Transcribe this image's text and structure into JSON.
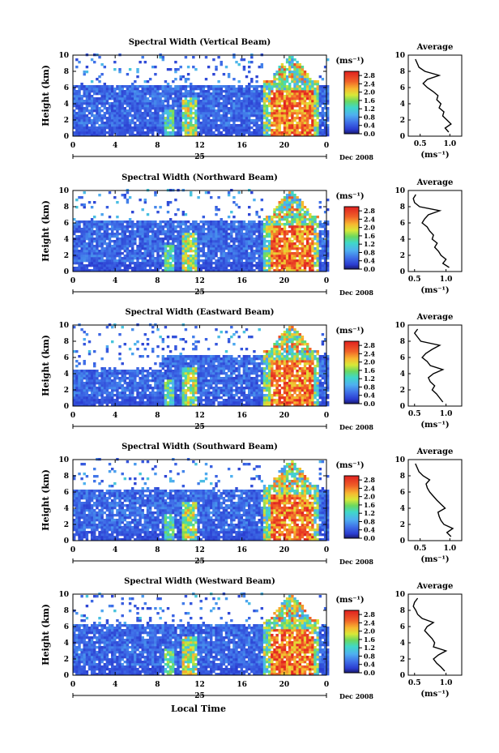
{
  "figure": {
    "xlabel_bottom": "Local Time",
    "colorbar_unit": "(ms⁻¹)",
    "average_title": "Average",
    "average_xlabel": "(ms⁻¹)",
    "day_label": "25",
    "month_label": "Dec 2008"
  },
  "chart_data": [
    {
      "type": "heatmap",
      "title": "Spectral Width (Vertical Beam)",
      "ylabel": "Height (km)",
      "xticks": [
        "0",
        "4",
        "8",
        "12",
        "16",
        "20",
        "0"
      ],
      "yticks": [
        "0",
        "2",
        "4",
        "6",
        "8",
        "10"
      ],
      "xlim": [
        0,
        24
      ],
      "ylim": [
        0,
        10
      ],
      "colorbar": {
        "ticks": [
          "0.0",
          "0.4",
          "0.8",
          "1.2",
          "1.6",
          "2.0",
          "2.4",
          "2.8"
        ],
        "range": [
          0.0,
          3.0
        ]
      },
      "average_profile": {
        "xticks": [
          "0.5",
          "1.0"
        ],
        "xlim": [
          0.3,
          1.2
        ],
        "heights": [
          0.5,
          1,
          1.5,
          2,
          2.5,
          3,
          3.5,
          4,
          4.5,
          5,
          5.5,
          6,
          6.5,
          7,
          7.5,
          8,
          8.5,
          9,
          9.5
        ],
        "values": [
          0.98,
          0.92,
          1.02,
          0.95,
          0.88,
          0.9,
          0.82,
          0.85,
          0.78,
          0.8,
          0.72,
          0.62,
          0.55,
          0.62,
          0.82,
          0.58,
          0.48,
          0.45,
          0.42
        ]
      }
    },
    {
      "type": "heatmap",
      "title": "Spectral Width (Northward Beam)",
      "ylabel": "Height (km)",
      "xticks": [
        "0",
        "4",
        "8",
        "12",
        "16",
        "20",
        "0"
      ],
      "yticks": [
        "0",
        "2",
        "4",
        "6",
        "8",
        "10"
      ],
      "xlim": [
        0,
        24
      ],
      "ylim": [
        0,
        10
      ],
      "colorbar": {
        "ticks": [
          "0.0",
          "0.4",
          "0.8",
          "1.2",
          "1.6",
          "2.0",
          "2.4",
          "2.8"
        ],
        "range": [
          0.0,
          3.0
        ]
      },
      "average_profile": {
        "xticks": [
          "0.5",
          "1.0"
        ],
        "xlim": [
          0.4,
          1.25
        ],
        "heights": [
          0.5,
          1,
          1.5,
          2,
          2.5,
          3,
          3.5,
          4,
          4.5,
          5,
          5.5,
          6,
          6.5,
          7,
          7.5,
          8,
          8.5,
          9,
          9.5
        ],
        "values": [
          1.05,
          0.95,
          1.0,
          0.92,
          0.88,
          0.82,
          0.86,
          0.78,
          0.8,
          0.74,
          0.7,
          0.62,
          0.66,
          0.72,
          0.9,
          0.58,
          0.5,
          0.48,
          0.52
        ]
      }
    },
    {
      "type": "heatmap",
      "title": "Spectral Width (Eastward Beam)",
      "ylabel": "Height (km)",
      "xticks": [
        "0",
        "4",
        "8",
        "12",
        "16",
        "20",
        "0"
      ],
      "yticks": [
        "0",
        "2",
        "4",
        "6",
        "8",
        "10"
      ],
      "xlim": [
        0,
        24
      ],
      "ylim": [
        0,
        10
      ],
      "colorbar": {
        "ticks": [
          "0.0",
          "0.4",
          "0.8",
          "1.2",
          "1.6",
          "2.0",
          "2.4",
          "2.8"
        ],
        "range": [
          0.0,
          3.0
        ]
      },
      "average_profile": {
        "xticks": [
          "0.5",
          "1.0"
        ],
        "xlim": [
          0.4,
          1.25
        ],
        "heights": [
          0.5,
          1,
          1.5,
          2,
          2.5,
          3,
          3.5,
          4,
          4.5,
          5,
          5.5,
          6,
          6.5,
          7,
          7.5,
          8,
          8.5,
          9,
          9.5
        ],
        "values": [
          0.95,
          0.9,
          0.85,
          0.78,
          0.82,
          0.75,
          0.72,
          0.8,
          0.95,
          0.75,
          0.7,
          0.62,
          0.68,
          0.78,
          0.9,
          0.6,
          0.55,
          0.5,
          0.55
        ]
      }
    },
    {
      "type": "heatmap",
      "title": "Spectral Width (Southward Beam)",
      "ylabel": "Height (km)",
      "xticks": [
        "0",
        "4",
        "8",
        "12",
        "16",
        "20",
        "0"
      ],
      "yticks": [
        "0",
        "2",
        "4",
        "6",
        "8",
        "10"
      ],
      "xlim": [
        0,
        24
      ],
      "ylim": [
        0,
        10
      ],
      "colorbar": {
        "ticks": [
          "0.0",
          "0.4",
          "0.8",
          "1.2",
          "1.6",
          "2.0",
          "2.4",
          "2.8"
        ],
        "range": [
          0.0,
          3.0
        ]
      },
      "average_profile": {
        "xticks": [
          "0.5",
          "1.0"
        ],
        "xlim": [
          0.3,
          1.2
        ],
        "heights": [
          0.5,
          1,
          1.5,
          2,
          2.5,
          3,
          3.5,
          4,
          4.5,
          5,
          5.5,
          6,
          6.5,
          7,
          7.5,
          8,
          8.5,
          9,
          9.5
        ],
        "values": [
          1.02,
          0.95,
          1.05,
          0.9,
          0.85,
          0.82,
          0.8,
          0.92,
          0.85,
          0.78,
          0.72,
          0.66,
          0.62,
          0.6,
          0.66,
          0.55,
          0.48,
          0.45,
          0.42
        ]
      }
    },
    {
      "type": "heatmap",
      "title": "Spectral Width (Westward Beam)",
      "ylabel": "Height (km)",
      "xticks": [
        "0",
        "4",
        "8",
        "12",
        "16",
        "20",
        "0"
      ],
      "yticks": [
        "0",
        "2",
        "4",
        "6",
        "8",
        "10"
      ],
      "xlim": [
        0,
        24
      ],
      "ylim": [
        0,
        10
      ],
      "colorbar": {
        "ticks": [
          "0.0",
          "0.4",
          "0.8",
          "1.2",
          "1.6",
          "2.0",
          "2.4",
          "2.8"
        ],
        "range": [
          0.0,
          3.0
        ]
      },
      "average_profile": {
        "xticks": [
          "0.5",
          "1.0"
        ],
        "xlim": [
          0.4,
          1.25
        ],
        "heights": [
          0.5,
          1,
          1.5,
          2,
          2.5,
          3,
          3.5,
          4,
          4.5,
          5,
          5.5,
          6,
          6.5,
          7,
          7.5,
          8,
          8.5,
          9,
          9.5
        ],
        "values": [
          0.98,
          0.92,
          0.85,
          0.8,
          0.88,
          1.0,
          0.8,
          0.82,
          0.78,
          0.72,
          0.66,
          0.7,
          0.8,
          0.62,
          0.55,
          0.52,
          0.48,
          0.5,
          0.55
        ]
      }
    }
  ]
}
